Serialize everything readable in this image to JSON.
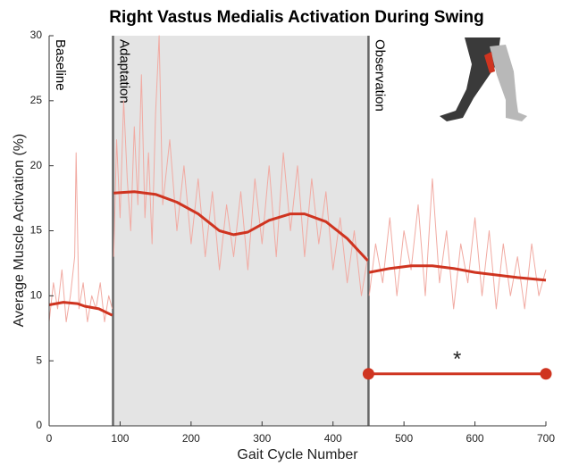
{
  "chart_data": {
    "type": "line",
    "title": "Right Vastus Medialis Activation During Swing",
    "xlabel": "Gait Cycle Number",
    "ylabel": "Average Muscle Activation (%)",
    "xlim": [
      0,
      700
    ],
    "ylim": [
      0,
      30
    ],
    "xticks": [
      0,
      100,
      200,
      300,
      400,
      500,
      600,
      700
    ],
    "yticks": [
      0,
      5,
      10,
      15,
      20,
      25,
      30
    ],
    "grid": false,
    "phases": [
      {
        "label": "Baseline",
        "start": 0
      },
      {
        "label": "Adaptation",
        "start": 90,
        "end": 450,
        "shade": "#e4e4e4"
      },
      {
        "label": "Observation",
        "start": 450
      }
    ],
    "series": [
      {
        "color": "#f1aaa2",
        "x": [
          0,
          6,
          12,
          18,
          24,
          30,
          36,
          38,
          42,
          48,
          54,
          60,
          66,
          72,
          78,
          84,
          89,
          90,
          91,
          95,
          100,
          105,
          110,
          115,
          120,
          125,
          130,
          135,
          140,
          145,
          150,
          155,
          160,
          170,
          180,
          190,
          200,
          210,
          220,
          230,
          240,
          250,
          260,
          270,
          280,
          290,
          300,
          310,
          320,
          330,
          340,
          350,
          360,
          370,
          380,
          390,
          400,
          410,
          420,
          430,
          440,
          449,
          450,
          451,
          460,
          470,
          480,
          490,
          500,
          510,
          520,
          530,
          540,
          550,
          560,
          570,
          580,
          590,
          600,
          610,
          620,
          630,
          640,
          650,
          660,
          670,
          680,
          690,
          700
        ],
        "values": [
          8,
          11,
          9,
          12,
          8,
          10,
          13,
          21,
          9,
          11,
          8,
          10,
          9,
          11,
          8,
          10,
          9,
          null,
          13,
          22,
          16,
          25,
          19,
          15,
          23,
          17,
          27,
          16,
          21,
          14,
          24,
          30,
          17,
          22,
          15,
          20,
          14,
          19,
          13,
          18,
          12,
          17,
          13,
          18,
          12,
          19,
          14,
          20,
          13,
          21,
          15,
          20,
          13,
          19,
          14,
          18,
          12,
          16,
          11,
          15,
          10,
          13,
          null,
          10,
          14,
          11,
          16,
          10,
          15,
          12,
          17,
          10,
          19,
          11,
          15,
          9,
          14,
          11,
          16,
          10,
          15,
          9,
          14,
          10,
          13,
          9,
          14,
          10,
          12
        ]
      },
      {
        "color": "#cf3420",
        "x": [
          0,
          20,
          40,
          50,
          70,
          89,
          90,
          91,
          120,
          150,
          180,
          210,
          240,
          260,
          280,
          310,
          340,
          360,
          390,
          420,
          449,
          450,
          451,
          480,
          510,
          540,
          570,
          600,
          630,
          660,
          700
        ],
        "values": [
          9.3,
          9.5,
          9.4,
          9.2,
          9.0,
          8.5,
          null,
          17.9,
          18.0,
          17.8,
          17.2,
          16.3,
          15.0,
          14.7,
          14.9,
          15.8,
          16.3,
          16.3,
          15.7,
          14.4,
          12.7,
          null,
          11.8,
          12.1,
          12.3,
          12.3,
          12.1,
          11.8,
          11.6,
          11.4,
          11.2
        ]
      }
    ],
    "significance": {
      "x": [
        450,
        700
      ],
      "y": 4,
      "color": "#cf3420"
    },
    "annotations": [
      {
        "text": "*",
        "x": 575,
        "y": 5.3
      }
    ]
  }
}
